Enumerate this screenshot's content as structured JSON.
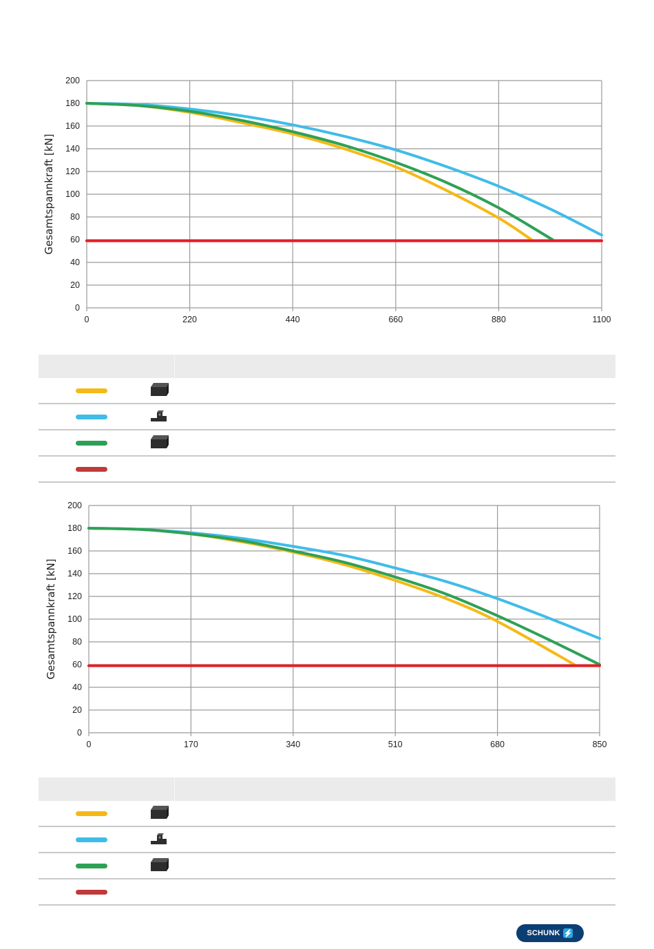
{
  "chart_data": [
    {
      "type": "line",
      "ylabel": "Gesamtspannkraft [kN]",
      "xlabel": "",
      "x_ticks": [
        "0",
        "220",
        "440",
        "660",
        "880",
        "1100"
      ],
      "y_ticks": [
        "0",
        "20",
        "40",
        "60",
        "80",
        "100",
        "120",
        "140",
        "160",
        "180",
        "200"
      ],
      "xlim": [
        0,
        1100
      ],
      "ylim": [
        0,
        200
      ],
      "grid": true,
      "series": [
        {
          "color": "#f5b916",
          "x": [
            0,
            110,
            220,
            330,
            440,
            550,
            660,
            770,
            880,
            950
          ],
          "values": [
            180,
            178,
            172,
            163,
            153,
            140,
            124,
            103,
            79,
            60
          ]
        },
        {
          "color": "#40bce8",
          "x": [
            0,
            110,
            220,
            330,
            440,
            550,
            660,
            770,
            880,
            990,
            1100
          ],
          "values": [
            180,
            179,
            175,
            169,
            161,
            151,
            139,
            124,
            107,
            87,
            64
          ]
        },
        {
          "color": "#2ea155",
          "x": [
            0,
            110,
            220,
            330,
            440,
            550,
            660,
            770,
            880,
            995
          ],
          "values": [
            180,
            178,
            173,
            165,
            155,
            143,
            128,
            110,
            88,
            60
          ]
        },
        {
          "color": "#e21e26",
          "x": [
            0,
            1100
          ],
          "values": [
            59,
            59
          ]
        }
      ]
    },
    {
      "type": "line",
      "ylabel": "Gesamtspannkraft [kN]",
      "xlabel": "",
      "x_ticks": [
        "0",
        "170",
        "340",
        "510",
        "680",
        "850"
      ],
      "y_ticks": [
        "0",
        "20",
        "40",
        "60",
        "80",
        "100",
        "120",
        "140",
        "160",
        "180",
        "200"
      ],
      "xlim": [
        0,
        850
      ],
      "ylim": [
        0,
        200
      ],
      "grid": true,
      "series": [
        {
          "color": "#f5b916",
          "x": [
            0,
            85,
            170,
            255,
            340,
            425,
            510,
            595,
            680,
            808
          ],
          "values": [
            180,
            179,
            175,
            168,
            159,
            148,
            134,
            118,
            98,
            60
          ]
        },
        {
          "color": "#40bce8",
          "x": [
            0,
            85,
            170,
            255,
            340,
            425,
            510,
            595,
            680,
            765,
            850
          ],
          "values": [
            180,
            179,
            176,
            171,
            164,
            156,
            145,
            133,
            118,
            101,
            83
          ]
        },
        {
          "color": "#2ea155",
          "x": [
            0,
            85,
            170,
            255,
            340,
            425,
            510,
            595,
            680,
            765,
            850
          ],
          "values": [
            180,
            179,
            175,
            169,
            160,
            150,
            137,
            122,
            103,
            82,
            60
          ]
        },
        {
          "color": "#e21e26",
          "x": [
            0,
            850
          ],
          "values": [
            59,
            59
          ]
        }
      ]
    }
  ],
  "legend_tables": [
    {
      "rows": [
        {
          "color": "#f5b916",
          "icon": "jaw-block-icon"
        },
        {
          "color": "#40bce8",
          "icon": "jaw-stepped-icon"
        },
        {
          "color": "#2ea155",
          "icon": "jaw-block-icon"
        },
        {
          "color": "#c0393b",
          "icon": ""
        }
      ]
    },
    {
      "rows": [
        {
          "color": "#f5b916",
          "icon": "jaw-block-icon"
        },
        {
          "color": "#40bce8",
          "icon": "jaw-stepped-icon"
        },
        {
          "color": "#2ea155",
          "icon": "jaw-block-icon"
        },
        {
          "color": "#c0393b",
          "icon": ""
        }
      ]
    }
  ],
  "footer": {
    "logo_text": "SCHUNK"
  }
}
